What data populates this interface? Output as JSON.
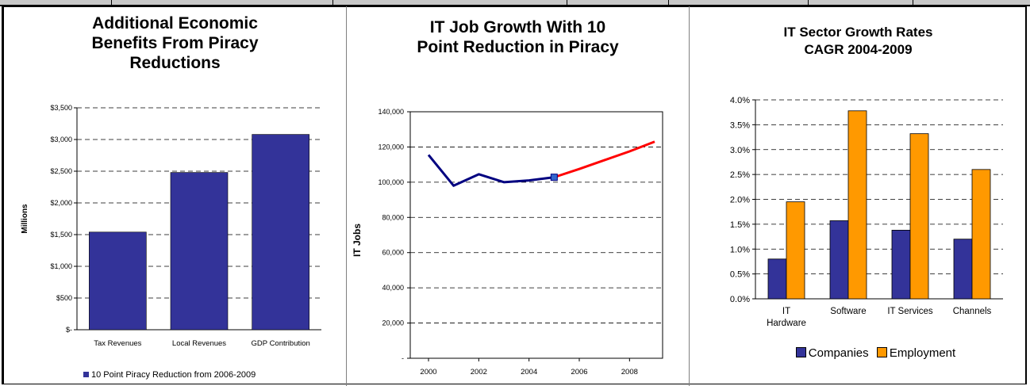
{
  "charts": {
    "benefits": {
      "title_lines": [
        "Additional Economic",
        "Benefits From Piracy",
        "Reductions"
      ],
      "ylabel": "Millions",
      "legend": "10 Point Piracy Reduction from 2006-2009",
      "bar_color": "#333399",
      "yticks": [
        "$-",
        "$500",
        "$1,000",
        "$1,500",
        "$2,000",
        "$2,500",
        "$3,000",
        "$3,500"
      ]
    },
    "jobs": {
      "title_lines": [
        "IT Job Growth With 10",
        "Point Reduction in Piracy"
      ],
      "ylabel": "IT Jobs",
      "hist_color": "#000080",
      "proj_color": "#ff0000",
      "yticks": [
        "-",
        "20,000",
        "40,000",
        "60,000",
        "80,000",
        "100,000",
        "120,000",
        "140,000"
      ],
      "xticks": [
        "2000",
        "2002",
        "2004",
        "2006",
        "2008"
      ]
    },
    "growth": {
      "title_lines": [
        "IT Sector Growth Rates",
        "CAGR 2004-2009"
      ],
      "legend": [
        "Companies",
        "Employment"
      ],
      "colors": [
        "#333399",
        "#ff9900"
      ],
      "yticks": [
        "0.0%",
        "0.5%",
        "1.0%",
        "1.5%",
        "2.0%",
        "2.5%",
        "3.0%",
        "3.5%",
        "4.0%"
      ]
    }
  },
  "chart_data": [
    {
      "type": "bar",
      "title": "Additional Economic Benefits From Piracy Reductions",
      "ylabel": "Millions",
      "categories": [
        "Tax Revenues",
        "Local Revenues",
        "GDP Contribution"
      ],
      "series": [
        {
          "name": "10 Point Piracy Reduction from 2006-2009",
          "values": [
            1540,
            2480,
            3080
          ]
        }
      ],
      "ylim": [
        0,
        3500
      ],
      "grid": true,
      "legend": "bottom"
    },
    {
      "type": "line",
      "title": "IT Job Growth With 10 Point Reduction in Piracy",
      "ylabel": "IT Jobs",
      "x": [
        2000,
        2001,
        2002,
        2003,
        2004,
        2005,
        2006,
        2007,
        2008,
        2009
      ],
      "series": [
        {
          "values": [
            115500,
            98000,
            104500,
            100000,
            101000,
            102800,
            null,
            null,
            null,
            null
          ]
        },
        {
          "values": [
            null,
            null,
            null,
            null,
            null,
            102800,
            107500,
            112500,
            117500,
            123000
          ]
        }
      ],
      "ylim": [
        0,
        140000
      ],
      "xlim": [
        2000,
        2009
      ],
      "grid": true
    },
    {
      "type": "bar",
      "title": "IT Sector Growth Rates CAGR 2004-2009",
      "categories": [
        "IT Hardware",
        "Software",
        "IT Services",
        "Channels"
      ],
      "series": [
        {
          "name": "Companies",
          "values": [
            0.8,
            1.57,
            1.38,
            1.2
          ]
        },
        {
          "name": "Employment",
          "values": [
            1.95,
            3.78,
            3.32,
            2.6
          ]
        }
      ],
      "ylim": [
        0,
        4.0
      ],
      "grid": true,
      "legend": "bottom"
    }
  ]
}
